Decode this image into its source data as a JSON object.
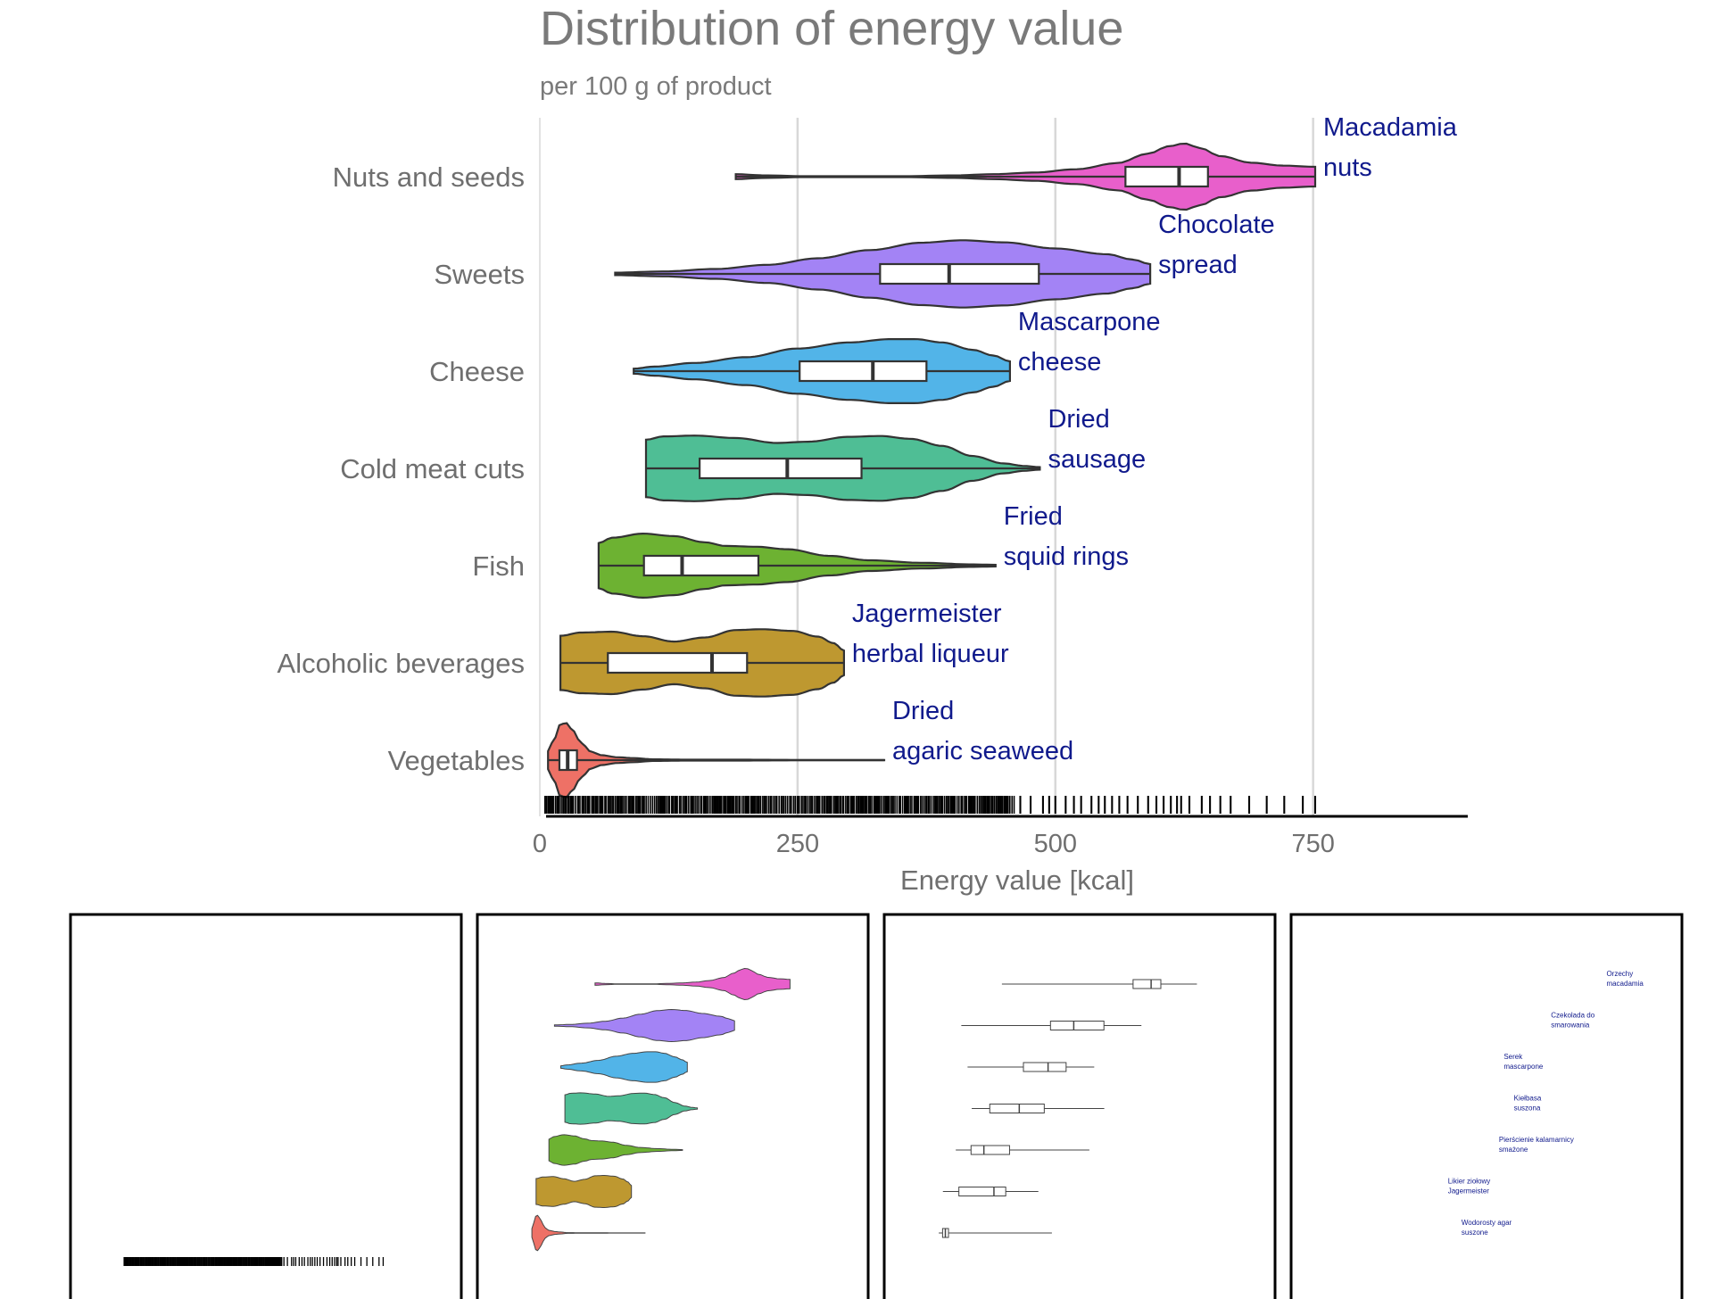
{
  "chart_data": {
    "type": "violin",
    "title": "Distribution of energy value",
    "subtitle": "per 100 g of product",
    "xlabel": "Energy value [kcal]",
    "ylabel": "",
    "xlim": [
      0,
      900
    ],
    "x_ticks": [
      0,
      250,
      500,
      750
    ],
    "grid": "vertical major lines at 250, 500, 750",
    "categories": [
      "Nuts and seeds",
      "Sweets",
      "Cheese",
      "Cold meat cuts",
      "Fish",
      "Alcoholic beverages",
      "Vegetables"
    ],
    "series": [
      {
        "category": "Nuts and seeds",
        "color": "#E85FCB",
        "min": 190,
        "q1": 568,
        "median": 620,
        "q3": 648,
        "max": 752,
        "annotation": [
          "Macadamia",
          "nuts"
        ],
        "density": [
          [
            190,
            0.06
          ],
          [
            220,
            0.03
          ],
          [
            260,
            0.01
          ],
          [
            350,
            0.01
          ],
          [
            400,
            0.03
          ],
          [
            440,
            0.06
          ],
          [
            480,
            0.1
          ],
          [
            520,
            0.18
          ],
          [
            560,
            0.33
          ],
          [
            590,
            0.56
          ],
          [
            610,
            0.74
          ],
          [
            625,
            0.81
          ],
          [
            640,
            0.7
          ],
          [
            660,
            0.5
          ],
          [
            690,
            0.34
          ],
          [
            720,
            0.27
          ],
          [
            752,
            0.24
          ]
        ]
      },
      {
        "category": "Sweets",
        "color": "#A383F5",
        "min": 73,
        "q1": 330,
        "median": 397,
        "q3": 484,
        "max": 592,
        "annotation": [
          "Chocolate",
          "spread"
        ],
        "density": [
          [
            73,
            0.03
          ],
          [
            120,
            0.06
          ],
          [
            170,
            0.12
          ],
          [
            220,
            0.22
          ],
          [
            270,
            0.38
          ],
          [
            320,
            0.58
          ],
          [
            370,
            0.76
          ],
          [
            410,
            0.82
          ],
          [
            450,
            0.77
          ],
          [
            500,
            0.62
          ],
          [
            550,
            0.48
          ],
          [
            575,
            0.35
          ],
          [
            592,
            0.24
          ]
        ]
      },
      {
        "category": "Cheese",
        "color": "#52B4E8",
        "min": 91,
        "q1": 252,
        "median": 323,
        "q3": 375,
        "max": 456,
        "annotation": [
          "Mascarpone",
          "cheese"
        ],
        "density": [
          [
            91,
            0.06
          ],
          [
            110,
            0.11
          ],
          [
            150,
            0.2
          ],
          [
            200,
            0.34
          ],
          [
            250,
            0.55
          ],
          [
            300,
            0.7
          ],
          [
            340,
            0.78
          ],
          [
            365,
            0.78
          ],
          [
            390,
            0.7
          ],
          [
            420,
            0.52
          ],
          [
            440,
            0.38
          ],
          [
            456,
            0.24
          ]
        ]
      },
      {
        "category": "Cold meat cuts",
        "color": "#4FBE95",
        "min": 103,
        "q1": 155,
        "median": 240,
        "q3": 312,
        "max": 485,
        "annotation": [
          "Dried",
          "sausage"
        ],
        "density": [
          [
            103,
            0.7
          ],
          [
            120,
            0.78
          ],
          [
            150,
            0.8
          ],
          [
            190,
            0.74
          ],
          [
            230,
            0.62
          ],
          [
            260,
            0.65
          ],
          [
            300,
            0.77
          ],
          [
            330,
            0.79
          ],
          [
            360,
            0.72
          ],
          [
            390,
            0.55
          ],
          [
            420,
            0.3
          ],
          [
            450,
            0.12
          ],
          [
            470,
            0.06
          ],
          [
            485,
            0.03
          ]
        ]
      },
      {
        "category": "Fish",
        "color": "#6DB232",
        "min": 57,
        "q1": 101,
        "median": 138,
        "q3": 212,
        "max": 442,
        "annotation": [
          "Fried",
          "squid rings"
        ],
        "density": [
          [
            57,
            0.55
          ],
          [
            70,
            0.68
          ],
          [
            100,
            0.78
          ],
          [
            130,
            0.72
          ],
          [
            160,
            0.57
          ],
          [
            180,
            0.48
          ],
          [
            210,
            0.46
          ],
          [
            240,
            0.4
          ],
          [
            280,
            0.24
          ],
          [
            320,
            0.13
          ],
          [
            370,
            0.07
          ],
          [
            420,
            0.03
          ],
          [
            442,
            0.02
          ]
        ]
      },
      {
        "category": "Alcoholic beverages",
        "color": "#BE9830",
        "min": 20,
        "q1": 66,
        "median": 167,
        "q3": 201,
        "max": 295,
        "annotation": [
          "Jagermeister",
          "herbal liqueur"
        ],
        "density": [
          [
            20,
            0.66
          ],
          [
            40,
            0.74
          ],
          [
            70,
            0.76
          ],
          [
            100,
            0.65
          ],
          [
            130,
            0.52
          ],
          [
            160,
            0.62
          ],
          [
            190,
            0.8
          ],
          [
            215,
            0.82
          ],
          [
            245,
            0.78
          ],
          [
            270,
            0.64
          ],
          [
            285,
            0.48
          ],
          [
            295,
            0.3
          ]
        ]
      },
      {
        "category": "Vegetables",
        "color": "#EE7166",
        "min": 8,
        "q1": 19,
        "median": 27,
        "q3": 36,
        "max": 334,
        "annotation": [
          "Dried",
          "agaric seaweed"
        ],
        "density": [
          [
            8,
            0.22
          ],
          [
            14,
            0.52
          ],
          [
            20,
            0.88
          ],
          [
            26,
            0.9
          ],
          [
            32,
            0.72
          ],
          [
            40,
            0.42
          ],
          [
            50,
            0.2
          ],
          [
            60,
            0.12
          ],
          [
            75,
            0.07
          ],
          [
            90,
            0.05
          ],
          [
            110,
            0.02
          ],
          [
            150,
            0.01
          ],
          [
            200,
            0.01
          ],
          [
            250,
            0.005
          ],
          [
            334,
            0.005
          ]
        ]
      }
    ],
    "rug": {
      "dense_range": [
        5,
        460
      ],
      "sparse_values": [
        466,
        476,
        488,
        494,
        500,
        510,
        518,
        525,
        535,
        542,
        548,
        555,
        562,
        570,
        580,
        590,
        598,
        605,
        612,
        618,
        622,
        630,
        642,
        650,
        660,
        670,
        688,
        705,
        722,
        740,
        752
      ]
    },
    "panels": [
      {
        "name": "rug"
      },
      {
        "name": "violins"
      },
      {
        "name": "boxplots"
      },
      {
        "name": "labels",
        "labels": [
          [
            "Orzechy",
            "macadamia"
          ],
          [
            "Czekolada do",
            "smarowania"
          ],
          [
            "Serek",
            "mascarpone"
          ],
          [
            "Kiełbasa",
            "suszona"
          ],
          [
            "Pierścienie kalamarnicy",
            "smażone"
          ],
          [
            "Likier ziołowy",
            "Jagermeister"
          ],
          [
            "Wodorosty agar",
            "suszone"
          ]
        ]
      }
    ],
    "colors": {
      "title": "#7a7a7a",
      "axis_text": "#6f6f6f",
      "annotation": "#101a8c",
      "grid": "#d8d8d8",
      "outline": "#333333"
    }
  }
}
